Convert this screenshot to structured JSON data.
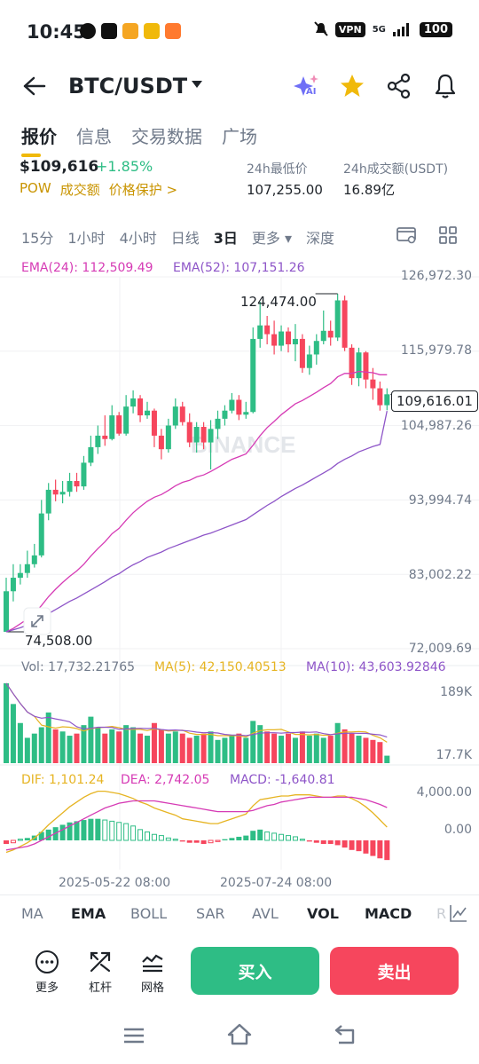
{
  "status_bar": {
    "time": "10:45",
    "vpn": "VPN",
    "network": "5G",
    "battery": "100"
  },
  "header": {
    "title": "BTC/USDT",
    "ai_label": "AI"
  },
  "tabs": [
    "报价",
    "信息",
    "交易数据",
    "广场"
  ],
  "ticker": {
    "price": "$109,616",
    "change": "+1.85%",
    "links": [
      "POW",
      "成交额",
      "价格保护 >"
    ],
    "low_label": "24h最低价",
    "low_value": "107,255.00",
    "vol_label": "24h成交额(USDT)",
    "vol_value": "16.89亿"
  },
  "timeframes": [
    "15分",
    "1小时",
    "4小时",
    "日线",
    "3日",
    "更多 ▾",
    "深度"
  ],
  "ema_legend": {
    "ema24": "EMA(24): 112,509.49",
    "ema52": "EMA(52): 107,151.26"
  },
  "price_axis": [
    "126,972.30",
    "115,979.78",
    "104,987.26",
    "93,994.74",
    "83,002.22",
    "72,009.69"
  ],
  "high_label": "124,474.00",
  "low_label": "74,508.00",
  "current_price": "109,616.01",
  "watermark": "BINANCE",
  "volume_legend": {
    "vol": "Vol: 17,732.21765",
    "ma5": "MA(5): 42,150.40513",
    "ma10": "MA(10): 43,603.92846"
  },
  "volume_axis": [
    "189K",
    "17.7K"
  ],
  "macd_legend": {
    "dif": "DIF: 1,101.24",
    "dea": "DEA: 2,742.05",
    "macd": "MACD: -1,640.81"
  },
  "macd_axis": [
    "4,000.00",
    "0.00"
  ],
  "date_labels": [
    "2025-05-22 08:00",
    "2025-07-24 08:00"
  ],
  "indicator_tabs": [
    "MA",
    "EMA",
    "BOLL",
    "SAR",
    "AVL",
    "VOL",
    "MACD",
    "R"
  ],
  "tools": [
    "更多",
    "杠杆",
    "网格"
  ],
  "buy_label": "买入",
  "sell_label": "卖出",
  "colors": {
    "up": "#2ebd85",
    "down": "#f6465d",
    "ema24": "#d63bb5",
    "ema52": "#8e55c8",
    "accent": "#f0b90b",
    "ma5": "#e6b422",
    "ma10": "#8e55c8"
  },
  "chart_data": {
    "type": "candlestick",
    "candles": [
      {
        "o": 74508,
        "c": 80500,
        "h": 82500,
        "l": 74508
      },
      {
        "o": 80500,
        "c": 82500,
        "h": 84500,
        "l": 79000
      },
      {
        "o": 82500,
        "c": 83200,
        "h": 84500,
        "l": 81500
      },
      {
        "o": 83200,
        "c": 84500,
        "h": 86500,
        "l": 82500
      },
      {
        "o": 84500,
        "c": 85800,
        "h": 87500,
        "l": 84000
      },
      {
        "o": 85800,
        "c": 92000,
        "h": 94000,
        "l": 85500
      },
      {
        "o": 92000,
        "c": 95500,
        "h": 96500,
        "l": 91000
      },
      {
        "o": 95500,
        "c": 94800,
        "h": 97000,
        "l": 93800
      },
      {
        "o": 94800,
        "c": 95200,
        "h": 96800,
        "l": 93500
      },
      {
        "o": 95200,
        "c": 96800,
        "h": 98000,
        "l": 94500
      },
      {
        "o": 96800,
        "c": 96000,
        "h": 98000,
        "l": 95200
      },
      {
        "o": 96000,
        "c": 99500,
        "h": 100500,
        "l": 95500
      },
      {
        "o": 99500,
        "c": 101800,
        "h": 103500,
        "l": 99000
      },
      {
        "o": 101800,
        "c": 103500,
        "h": 105000,
        "l": 100800
      },
      {
        "o": 103500,
        "c": 103000,
        "h": 106500,
        "l": 102000
      },
      {
        "o": 103000,
        "c": 106500,
        "h": 108000,
        "l": 102800
      },
      {
        "o": 106500,
        "c": 103800,
        "h": 107000,
        "l": 103500
      },
      {
        "o": 103800,
        "c": 107800,
        "h": 109500,
        "l": 103500
      },
      {
        "o": 107800,
        "c": 109000,
        "h": 110200,
        "l": 106800
      },
      {
        "o": 109000,
        "c": 106500,
        "h": 109500,
        "l": 105500
      },
      {
        "o": 106500,
        "c": 107200,
        "h": 108500,
        "l": 106000
      },
      {
        "o": 107200,
        "c": 103500,
        "h": 107500,
        "l": 101800
      },
      {
        "o": 103500,
        "c": 101500,
        "h": 104500,
        "l": 100000
      },
      {
        "o": 101500,
        "c": 105000,
        "h": 106000,
        "l": 101000
      },
      {
        "o": 105000,
        "c": 107800,
        "h": 109000,
        "l": 104500
      },
      {
        "o": 107800,
        "c": 105500,
        "h": 108500,
        "l": 105000
      },
      {
        "o": 105500,
        "c": 102500,
        "h": 106800,
        "l": 101800
      },
      {
        "o": 102500,
        "c": 104800,
        "h": 105500,
        "l": 101000
      },
      {
        "o": 104800,
        "c": 102500,
        "h": 105500,
        "l": 101500
      },
      {
        "o": 102500,
        "c": 104500,
        "h": 105800,
        "l": 98500
      },
      {
        "o": 104500,
        "c": 106000,
        "h": 107200,
        "l": 103000
      },
      {
        "o": 106000,
        "c": 107200,
        "h": 108000,
        "l": 105000
      },
      {
        "o": 107200,
        "c": 108800,
        "h": 109800,
        "l": 106800
      },
      {
        "o": 108800,
        "c": 106600,
        "h": 109500,
        "l": 105800
      },
      {
        "o": 106600,
        "c": 107000,
        "h": 108500,
        "l": 106000
      },
      {
        "o": 107000,
        "c": 117800,
        "h": 119500,
        "l": 106800
      },
      {
        "o": 117800,
        "c": 119800,
        "h": 123300,
        "l": 116500
      },
      {
        "o": 119800,
        "c": 118500,
        "h": 121200,
        "l": 117000
      },
      {
        "o": 118500,
        "c": 116800,
        "h": 120500,
        "l": 115500
      },
      {
        "o": 116800,
        "c": 118900,
        "h": 119800,
        "l": 116000
      },
      {
        "o": 118900,
        "c": 117000,
        "h": 119500,
        "l": 115800
      },
      {
        "o": 117000,
        "c": 117800,
        "h": 120000,
        "l": 114500
      },
      {
        "o": 117800,
        "c": 113500,
        "h": 118500,
        "l": 112800
      },
      {
        "o": 113500,
        "c": 115500,
        "h": 116800,
        "l": 112500
      },
      {
        "o": 115500,
        "c": 117500,
        "h": 118500,
        "l": 114000
      },
      {
        "o": 117500,
        "c": 119000,
        "h": 122000,
        "l": 117000
      },
      {
        "o": 119000,
        "c": 118000,
        "h": 120500,
        "l": 116800
      },
      {
        "o": 118000,
        "c": 123500,
        "h": 124474,
        "l": 117500
      },
      {
        "o": 123500,
        "c": 116500,
        "h": 124200,
        "l": 116000
      },
      {
        "o": 116500,
        "c": 112000,
        "h": 117000,
        "l": 111000
      },
      {
        "o": 112000,
        "c": 115800,
        "h": 116500,
        "l": 110800
      },
      {
        "o": 115800,
        "c": 111800,
        "h": 116000,
        "l": 110500
      },
      {
        "o": 111800,
        "c": 110500,
        "h": 113500,
        "l": 108800
      },
      {
        "o": 110500,
        "c": 108000,
        "h": 111500,
        "l": 107200
      },
      {
        "o": 108000,
        "c": 109616,
        "h": 110500,
        "l": 107255
      }
    ],
    "ema24": [
      74508,
      75000,
      75700,
      76400,
      77200,
      78400,
      79700,
      80800,
      81800,
      82700,
      83500,
      84500,
      85700,
      86800,
      87800,
      89000,
      89800,
      91000,
      92100,
      93000,
      93800,
      94400,
      94800,
      95400,
      96100,
      96600,
      96900,
      97400,
      97700,
      98200,
      98800,
      99400,
      100000,
      100400,
      100800,
      102100,
      103500,
      104700,
      105600,
      106600,
      107400,
      108200,
      108700,
      109300,
      109900,
      110600,
      111200,
      112200,
      112700,
      112700,
      113000,
      112900,
      112800,
      112500,
      112509
    ],
    "ema52": [
      74508,
      74800,
      75100,
      75500,
      75900,
      76500,
      77200,
      77800,
      78400,
      79000,
      79500,
      80100,
      80700,
      81300,
      81900,
      82600,
      83100,
      83800,
      84400,
      84900,
      85500,
      85900,
      86300,
      86800,
      87200,
      87600,
      88000,
      88400,
      88800,
      89100,
      89500,
      89900,
      90300,
      90700,
      91100,
      91800,
      92500,
      93200,
      93800,
      94500,
      95100,
      95700,
      96200,
      96800,
      97400,
      98000,
      98600,
      99400,
      100000,
      100500,
      101100,
      101500,
      101900,
      102200,
      107151
    ],
    "volume": [
      189,
      140,
      95,
      60,
      70,
      85,
      120,
      80,
      75,
      65,
      70,
      90,
      110,
      85,
      70,
      80,
      75,
      90,
      85,
      70,
      65,
      95,
      80,
      70,
      75,
      70,
      60,
      65,
      70,
      75,
      55,
      60,
      65,
      70,
      60,
      100,
      90,
      75,
      70,
      65,
      70,
      60,
      75,
      65,
      70,
      60,
      65,
      95,
      80,
      70,
      65,
      60,
      55,
      50,
      17.7
    ],
    "macd_hist": [
      -300,
      -200,
      100,
      200,
      400,
      700,
      900,
      1100,
      1300,
      1500,
      1600,
      1700,
      1800,
      1800,
      1700,
      1600,
      1500,
      1400,
      1200,
      900,
      700,
      500,
      400,
      200,
      100,
      -100,
      -200,
      -200,
      -300,
      -200,
      -100,
      100,
      200,
      300,
      400,
      800,
      900,
      700,
      600,
      500,
      400,
      300,
      100,
      -100,
      -200,
      -300,
      -300,
      -400,
      -600,
      -800,
      -900,
      -1100,
      -1300,
      -1500,
      -1640.81
    ],
    "dif": [
      -1000,
      -800,
      -500,
      -200,
      200,
      700,
      1300,
      1800,
      2300,
      2800,
      3200,
      3600,
      3900,
      4100,
      4100,
      4000,
      3900,
      3700,
      3500,
      3200,
      3000,
      2700,
      2500,
      2300,
      2100,
      1800,
      1700,
      1600,
      1500,
      1400,
      1400,
      1600,
      1800,
      2000,
      2200,
      2900,
      3400,
      3500,
      3600,
      3700,
      3700,
      3800,
      3800,
      3800,
      3700,
      3600,
      3600,
      3700,
      3700,
      3500,
      3200,
      2800,
      2300,
      1700,
      1101.24
    ],
    "dea": [
      -800,
      -700,
      -600,
      -500,
      -300,
      0,
      300,
      600,
      900,
      1200,
      1500,
      1800,
      2100,
      2400,
      2700,
      2900,
      3100,
      3200,
      3300,
      3300,
      3300,
      3300,
      3200,
      3100,
      3000,
      2900,
      2800,
      2700,
      2600,
      2500,
      2400,
      2400,
      2400,
      2400,
      2400,
      2500,
      2700,
      2900,
      3000,
      3200,
      3300,
      3400,
      3500,
      3600,
      3600,
      3600,
      3600,
      3600,
      3600,
      3600,
      3500,
      3400,
      3200,
      3000,
      2742.05
    ],
    "ylim": [
      72009.69,
      126972.3
    ]
  }
}
